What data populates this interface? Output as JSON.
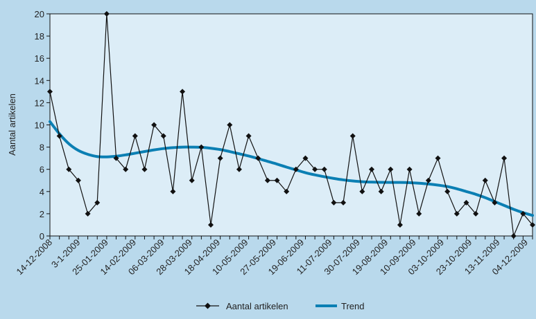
{
  "chart_data": {
    "type": "line",
    "title": "",
    "xlabel": "",
    "ylabel": "Aantal artikelen",
    "ylim": [
      0,
      20
    ],
    "yticks": [
      0,
      2,
      4,
      6,
      8,
      10,
      12,
      14,
      16,
      18,
      20
    ],
    "grid": false,
    "legend_position": "bottom",
    "x_tick_labels": [
      "14-12-2008",
      "3-1-2009",
      "25-01-2009",
      "14-02-2009",
      "06-03-2009",
      "28-03-2009",
      "18-04-2009",
      "10-05-2009",
      "27-05-2009",
      "19-06-2009",
      "11-07-2009",
      "30-07-2009",
      "19-08-2009",
      "10-09-2009",
      "03-10-2009",
      "23-10-2009",
      "13-11-2009",
      "04-12-2009"
    ],
    "series": [
      {
        "name": "Aantal artikelen",
        "color": "#111111",
        "marker": "diamond",
        "values": [
          13,
          9,
          6,
          5,
          2,
          3,
          20,
          7,
          6,
          9,
          6,
          10,
          9,
          4,
          13,
          5,
          8,
          1,
          7,
          10,
          6,
          9,
          7,
          5,
          5,
          4,
          6,
          7,
          6,
          6,
          3,
          3,
          9,
          4,
          6,
          4,
          6,
          1,
          6,
          2,
          5,
          7,
          4,
          2,
          3,
          2,
          5,
          3,
          7,
          0,
          2,
          1
        ]
      },
      {
        "name": "Trend",
        "color": "#0b7fb3",
        "style": "smooth-line",
        "values": [
          10.3,
          9.2,
          8.3,
          7.7,
          7.35,
          7.15,
          7.12,
          7.18,
          7.3,
          7.45,
          7.6,
          7.75,
          7.87,
          7.95,
          8.0,
          8.0,
          7.98,
          7.9,
          7.78,
          7.6,
          7.4,
          7.2,
          6.97,
          6.72,
          6.47,
          6.2,
          5.95,
          5.7,
          5.5,
          5.33,
          5.18,
          5.05,
          4.95,
          4.88,
          4.85,
          4.83,
          4.82,
          4.82,
          4.8,
          4.75,
          4.68,
          4.58,
          4.45,
          4.25,
          4.0,
          3.75,
          3.45,
          3.1,
          2.75,
          2.4,
          2.1,
          1.85
        ]
      }
    ]
  },
  "legend": {
    "items": [
      "Aantal artikelen",
      "Trend"
    ]
  }
}
